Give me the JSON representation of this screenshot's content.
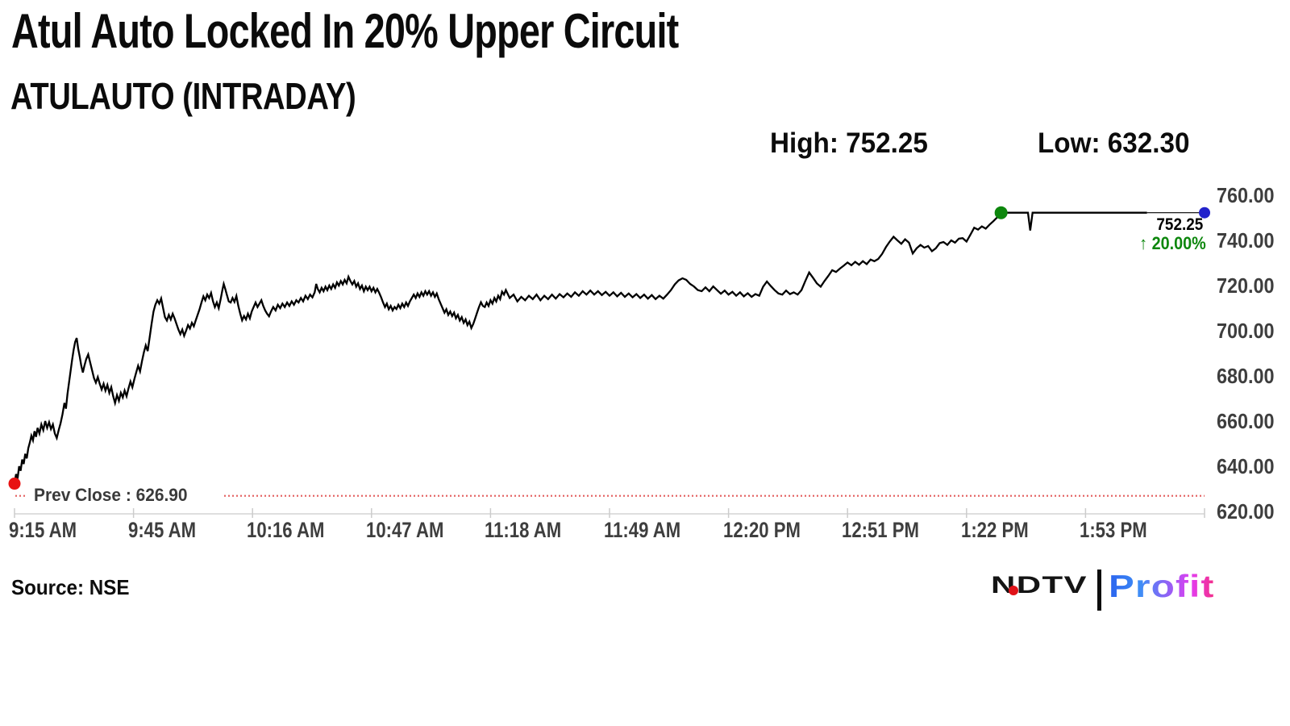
{
  "header": {
    "title": "Atul Auto Locked In 20% Upper Circuit",
    "subtitle": "ATULAUTO (INTRADAY)"
  },
  "stats": {
    "high": "High: 752.25",
    "low": "Low: 632.30"
  },
  "footer": {
    "source": "Source: NSE"
  },
  "logo": {
    "ndtv": "NDTV",
    "profit": "Profit"
  },
  "chart_data": {
    "type": "line",
    "symbol": "ATULAUTO",
    "session": "INTRADAY",
    "high": 752.25,
    "low": 632.3,
    "prev_close": 626.9,
    "prev_close_label": "Prev Close : 626.90",
    "last_price": 752.25,
    "last_price_label": "752.25",
    "change_arrow": "↑",
    "change_label": "20.00%",
    "change_pct": 20.0,
    "line_color": "#000000",
    "prev_close_line_color": "#e45e5e",
    "axis_color": "#cccccc",
    "x_axis": {
      "tick_labels": [
        "9:15 AM",
        "9:45 AM",
        "10:16 AM",
        "10:47 AM",
        "11:18 AM",
        "11:49 AM",
        "12:20 PM",
        "12:51 PM",
        "1:22 PM",
        "1:53 PM"
      ],
      "tick_count": 11,
      "minutes_per_tick": 31,
      "time_span_minutes": 310
    },
    "y_axis": {
      "min": 620,
      "max": 760,
      "tick_values": [
        760,
        740,
        720,
        700,
        680,
        660,
        640,
        620
      ],
      "tick_labels": [
        "760.00",
        "740.00",
        "720.00",
        "700.00",
        "680.00",
        "660.00",
        "640.00",
        "620.00"
      ],
      "side": "right"
    },
    "markers": {
      "session_start": {
        "minute": 0,
        "price": 632.3,
        "color": "#e81212"
      },
      "upper_circuit": {
        "minute": 257,
        "price": 752.25,
        "color": "#0d870d"
      },
      "last": {
        "minute": 310,
        "price": 752.25,
        "color": "#2323cb"
      }
    },
    "thin_tail_from_minute": 295,
    "points": [
      [
        0,
        632.3
      ],
      [
        0.4,
        636.5
      ],
      [
        0.8,
        634.5
      ],
      [
        1.2,
        640
      ],
      [
        1.6,
        638
      ],
      [
        2,
        643
      ],
      [
        2.4,
        641
      ],
      [
        2.8,
        645.5
      ],
      [
        3.2,
        643.5
      ],
      [
        3.6,
        648
      ],
      [
        4,
        650.5
      ],
      [
        4.4,
        653.5
      ],
      [
        4.8,
        651.5
      ],
      [
        5.2,
        655.5
      ],
      [
        5.6,
        653
      ],
      [
        6,
        657
      ],
      [
        6.5,
        654.5
      ],
      [
        7,
        658.5
      ],
      [
        7.5,
        656
      ],
      [
        8,
        660
      ],
      [
        8.5,
        657
      ],
      [
        9,
        659.5
      ],
      [
        9.5,
        656.5
      ],
      [
        10,
        658.5
      ],
      [
        10.5,
        654.5
      ],
      [
        11,
        652.5
      ],
      [
        11.5,
        656
      ],
      [
        12,
        659
      ],
      [
        12.5,
        663
      ],
      [
        13,
        668
      ],
      [
        13.4,
        665.5
      ],
      [
        13.8,
        672
      ],
      [
        14.2,
        677
      ],
      [
        14.6,
        682
      ],
      [
        15,
        687
      ],
      [
        15.4,
        691.5
      ],
      [
        15.8,
        695
      ],
      [
        16.2,
        696.8
      ],
      [
        16.6,
        692
      ],
      [
        17,
        688.5
      ],
      [
        17.4,
        684.5
      ],
      [
        17.8,
        681.5
      ],
      [
        18.2,
        684.5
      ],
      [
        18.7,
        687.5
      ],
      [
        19.2,
        689.5
      ],
      [
        19.7,
        686
      ],
      [
        20.2,
        682.5
      ],
      [
        20.7,
        679
      ],
      [
        21.2,
        677
      ],
      [
        21.7,
        679.5
      ],
      [
        22.2,
        676.5
      ],
      [
        22.7,
        674
      ],
      [
        23.2,
        676.5
      ],
      [
        23.7,
        673.5
      ],
      [
        24.2,
        676
      ],
      [
        24.7,
        672.5
      ],
      [
        25.2,
        675
      ],
      [
        25.7,
        671
      ],
      [
        26.2,
        668
      ],
      [
        26.7,
        671.5
      ],
      [
        27.2,
        669
      ],
      [
        27.7,
        672.5
      ],
      [
        28.2,
        670.5
      ],
      [
        28.7,
        673.5
      ],
      [
        29.2,
        671
      ],
      [
        29.7,
        674.5
      ],
      [
        30.2,
        677.5
      ],
      [
        30.7,
        675
      ],
      [
        31.2,
        678.5
      ],
      [
        31.7,
        681.5
      ],
      [
        32.2,
        684.5
      ],
      [
        32.7,
        682
      ],
      [
        33.2,
        686.5
      ],
      [
        33.7,
        690.5
      ],
      [
        34.2,
        693.5
      ],
      [
        34.7,
        691
      ],
      [
        35.2,
        697
      ],
      [
        35.7,
        703
      ],
      [
        36.2,
        708.5
      ],
      [
        36.7,
        711.5
      ],
      [
        37.2,
        713.5
      ],
      [
        37.7,
        712
      ],
      [
        38.2,
        714.3
      ],
      [
        38.7,
        710
      ],
      [
        39.2,
        706
      ],
      [
        39.7,
        704.5
      ],
      [
        40.2,
        707
      ],
      [
        40.7,
        705
      ],
      [
        41.2,
        707.5
      ],
      [
        41.7,
        705.5
      ],
      [
        42.2,
        703
      ],
      [
        42.7,
        700.5
      ],
      [
        43.2,
        698.5
      ],
      [
        43.7,
        700.5
      ],
      [
        44.2,
        697.8
      ],
      [
        44.7,
        700
      ],
      [
        45.2,
        702.5
      ],
      [
        45.7,
        701
      ],
      [
        46.2,
        703.5
      ],
      [
        46.7,
        702
      ],
      [
        47.2,
        704.5
      ],
      [
        47.7,
        707
      ],
      [
        48.2,
        709.5
      ],
      [
        48.7,
        712.5
      ],
      [
        49.2,
        715.2
      ],
      [
        49.7,
        713.5
      ],
      [
        50.2,
        716
      ],
      [
        50.7,
        714.5
      ],
      [
        51.2,
        716.7
      ],
      [
        51.7,
        713
      ],
      [
        52.2,
        710.5
      ],
      [
        52.7,
        712.5
      ],
      [
        53.2,
        710
      ],
      [
        53.7,
        714
      ],
      [
        54.2,
        718.5
      ],
      [
        54.5,
        720.7
      ],
      [
        54.9,
        718.5
      ],
      [
        55.3,
        716
      ],
      [
        55.8,
        713
      ],
      [
        56.3,
        712.5
      ],
      [
        56.8,
        714.5
      ],
      [
        57.3,
        712.8
      ],
      [
        57.8,
        715.4
      ],
      [
        58.3,
        711
      ],
      [
        58.8,
        707.5
      ],
      [
        59.3,
        704.6
      ],
      [
        59.8,
        706.5
      ],
      [
        60.3,
        705
      ],
      [
        60.8,
        707.5
      ],
      [
        61.3,
        705.5
      ],
      [
        61.8,
        708.5
      ],
      [
        62.3,
        710.5
      ],
      [
        62.8,
        712.5
      ],
      [
        63.3,
        710.5
      ],
      [
        63.8,
        712
      ],
      [
        64.3,
        713.5
      ],
      [
        64.8,
        711
      ],
      [
        65.3,
        709
      ],
      [
        65.8,
        707.5
      ],
      [
        66.3,
        706.4
      ],
      [
        66.8,
        708.5
      ],
      [
        67.4,
        710.5
      ],
      [
        68,
        709
      ],
      [
        68.6,
        711.5
      ],
      [
        69.2,
        710
      ],
      [
        69.8,
        712
      ],
      [
        70.4,
        710.5
      ],
      [
        71,
        712.5
      ],
      [
        71.6,
        711
      ],
      [
        72.2,
        713
      ],
      [
        72.8,
        711.5
      ],
      [
        73.4,
        713.5
      ],
      [
        74,
        712.5
      ],
      [
        74.6,
        714.5
      ],
      [
        75.2,
        713
      ],
      [
        75.8,
        715.5
      ],
      [
        76.4,
        714
      ],
      [
        77,
        716
      ],
      [
        77.6,
        714.8
      ],
      [
        78.2,
        717
      ],
      [
        78.6,
        720.7
      ],
      [
        79,
        718.5
      ],
      [
        79.5,
        717
      ],
      [
        80,
        719
      ],
      [
        80.5,
        717.5
      ],
      [
        81,
        719.5
      ],
      [
        81.5,
        718
      ],
      [
        82,
        720
      ],
      [
        82.5,
        718.5
      ],
      [
        83,
        720.5
      ],
      [
        83.5,
        719
      ],
      [
        84,
        721.4
      ],
      [
        84.5,
        720
      ],
      [
        85,
        722
      ],
      [
        85.5,
        720.5
      ],
      [
        86,
        722.5
      ],
      [
        86.5,
        721
      ],
      [
        87,
        723.9
      ],
      [
        87.5,
        722
      ],
      [
        88,
        720.5
      ],
      [
        88.5,
        722
      ],
      [
        89,
        719.5
      ],
      [
        89.5,
        721
      ],
      [
        90,
        718.5
      ],
      [
        90.5,
        720
      ],
      [
        91,
        717.5
      ],
      [
        91.5,
        719.5
      ],
      [
        92,
        718
      ],
      [
        92.5,
        719.5
      ],
      [
        93,
        717.5
      ],
      [
        93.5,
        719
      ],
      [
        94,
        717
      ],
      [
        94.5,
        718.5
      ],
      [
        95,
        716.8
      ],
      [
        95.5,
        714.8
      ],
      [
        96,
        712.5
      ],
      [
        96.5,
        710.5
      ],
      [
        97,
        712
      ],
      [
        97.5,
        709.5
      ],
      [
        98,
        711
      ],
      [
        98.5,
        709
      ],
      [
        99,
        710.5
      ],
      [
        99.5,
        709.6
      ],
      [
        100,
        711.5
      ],
      [
        100.5,
        710
      ],
      [
        101,
        712
      ],
      [
        101.5,
        710.5
      ],
      [
        102,
        712.5
      ],
      [
        102.5,
        711
      ],
      [
        103,
        713
      ],
      [
        103.5,
        714.5
      ],
      [
        104,
        716
      ],
      [
        104.5,
        714.5
      ],
      [
        105,
        716.5
      ],
      [
        105.5,
        715
      ],
      [
        106,
        717
      ],
      [
        106.5,
        715.5
      ],
      [
        107,
        717.5
      ],
      [
        107.5,
        716
      ],
      [
        108,
        717.5
      ],
      [
        108.5,
        715.5
      ],
      [
        109,
        717
      ],
      [
        109.5,
        715
      ],
      [
        110,
        716.5
      ],
      [
        110.5,
        714
      ],
      [
        111,
        712
      ],
      [
        111.5,
        710
      ],
      [
        112,
        708
      ],
      [
        112.5,
        709.5
      ],
      [
        113,
        707
      ],
      [
        113.5,
        708.5
      ],
      [
        114,
        706.5
      ],
      [
        114.5,
        708
      ],
      [
        115,
        705.5
      ],
      [
        115.5,
        707
      ],
      [
        116,
        704.5
      ],
      [
        116.5,
        706
      ],
      [
        117,
        703.5
      ],
      [
        117.5,
        705
      ],
      [
        118,
        702.5
      ],
      [
        118.5,
        704
      ],
      [
        119,
        701.2
      ],
      [
        119.5,
        703
      ],
      [
        120,
        705.5
      ],
      [
        120.5,
        708
      ],
      [
        121,
        710.5
      ],
      [
        121.5,
        712.6
      ],
      [
        122,
        711
      ],
      [
        122.5,
        710.5
      ],
      [
        123,
        712.5
      ],
      [
        123.5,
        711
      ],
      [
        124,
        713.5
      ],
      [
        124.5,
        712
      ],
      [
        125,
        714.5
      ],
      [
        125.5,
        713
      ],
      [
        126,
        715.5
      ],
      [
        126.5,
        714
      ],
      [
        127,
        717.3
      ],
      [
        127.5,
        716
      ],
      [
        128,
        718
      ],
      [
        129,
        714.5
      ],
      [
        130,
        716
      ],
      [
        131,
        713
      ],
      [
        132,
        715
      ],
      [
        133,
        713.5
      ],
      [
        134,
        715.5
      ],
      [
        135,
        714
      ],
      [
        136,
        716
      ],
      [
        137,
        713.5
      ],
      [
        138,
        715.5
      ],
      [
        139,
        714
      ],
      [
        140,
        716
      ],
      [
        141,
        714.2
      ],
      [
        142,
        716.2
      ],
      [
        143,
        714.8
      ],
      [
        144,
        716.5
      ],
      [
        145,
        715
      ],
      [
        146,
        717
      ],
      [
        147,
        715.5
      ],
      [
        148,
        717.5
      ],
      [
        149,
        716
      ],
      [
        150,
        717.8
      ],
      [
        151,
        716
      ],
      [
        152,
        717.5
      ],
      [
        153,
        715.8
      ],
      [
        154,
        717.2
      ],
      [
        155,
        715.5
      ],
      [
        156,
        717
      ],
      [
        157,
        715.2
      ],
      [
        158,
        716.8
      ],
      [
        159,
        715
      ],
      [
        160,
        716.5
      ],
      [
        161,
        714.8
      ],
      [
        162,
        716.2
      ],
      [
        163,
        714.5
      ],
      [
        164,
        716
      ],
      [
        165,
        714.2
      ],
      [
        166,
        715.8
      ],
      [
        167,
        714
      ],
      [
        168,
        715.5
      ],
      [
        169,
        714.2
      ],
      [
        170,
        716
      ],
      [
        171,
        718
      ],
      [
        172,
        720.5
      ],
      [
        173,
        722.3
      ],
      [
        174,
        723.2
      ],
      [
        175,
        722.5
      ],
      [
        176,
        720.7
      ],
      [
        177,
        719.6
      ],
      [
        178,
        718
      ],
      [
        179,
        717.5
      ],
      [
        180,
        719.2
      ],
      [
        181,
        717.5
      ],
      [
        182,
        719.6
      ],
      [
        183,
        718
      ],
      [
        184,
        716.4
      ],
      [
        185,
        717.8
      ],
      [
        186,
        716
      ],
      [
        187,
        717.2
      ],
      [
        188,
        715.5
      ],
      [
        189,
        717
      ],
      [
        190,
        715.2
      ],
      [
        191,
        716.6
      ],
      [
        192,
        715
      ],
      [
        193,
        716.2
      ],
      [
        194,
        715.5
      ],
      [
        195,
        719.5
      ],
      [
        196,
        721.8
      ],
      [
        197,
        719.8
      ],
      [
        198,
        718
      ],
      [
        199,
        716.5
      ],
      [
        200,
        716
      ],
      [
        201,
        717.8
      ],
      [
        202,
        716.2
      ],
      [
        203,
        717
      ],
      [
        204,
        716
      ],
      [
        205,
        718
      ],
      [
        206,
        722
      ],
      [
        207,
        725.8
      ],
      [
        208,
        723.5
      ],
      [
        209,
        721
      ],
      [
        210,
        719.5
      ],
      [
        211,
        722
      ],
      [
        212,
        724.3
      ],
      [
        213,
        726.8
      ],
      [
        214,
        726
      ],
      [
        215,
        727.5
      ],
      [
        216,
        728.8
      ],
      [
        217,
        730.2
      ],
      [
        218,
        729
      ],
      [
        219,
        730.5
      ],
      [
        220,
        729.2
      ],
      [
        221,
        730.8
      ],
      [
        222,
        729.5
      ],
      [
        223,
        731.5
      ],
      [
        224,
        730.8
      ],
      [
        225,
        731.8
      ],
      [
        226,
        734
      ],
      [
        227,
        737
      ],
      [
        228,
        739.5
      ],
      [
        229,
        741.6
      ],
      [
        230,
        740
      ],
      [
        231,
        738.5
      ],
      [
        232,
        740.5
      ],
      [
        233,
        739
      ],
      [
        234,
        734.2
      ],
      [
        235,
        736.5
      ],
      [
        236,
        738
      ],
      [
        237,
        736.8
      ],
      [
        238,
        737.5
      ],
      [
        239,
        735.2
      ],
      [
        240,
        736.5
      ],
      [
        241,
        738.8
      ],
      [
        242,
        739.3
      ],
      [
        243,
        738
      ],
      [
        244,
        740
      ],
      [
        245,
        739
      ],
      [
        246,
        740.8
      ],
      [
        247,
        741
      ],
      [
        248,
        739.5
      ],
      [
        249,
        742.5
      ],
      [
        250,
        745.6
      ],
      [
        251,
        744.8
      ],
      [
        252,
        746.2
      ],
      [
        253,
        745.2
      ],
      [
        254,
        747
      ],
      [
        255,
        748.5
      ],
      [
        256,
        750.2
      ],
      [
        257,
        752.25
      ],
      [
        264,
        752.25
      ],
      [
        264.6,
        744.4
      ],
      [
        265.2,
        752.25
      ],
      [
        295,
        752.25
      ],
      [
        310,
        752.25
      ]
    ]
  }
}
